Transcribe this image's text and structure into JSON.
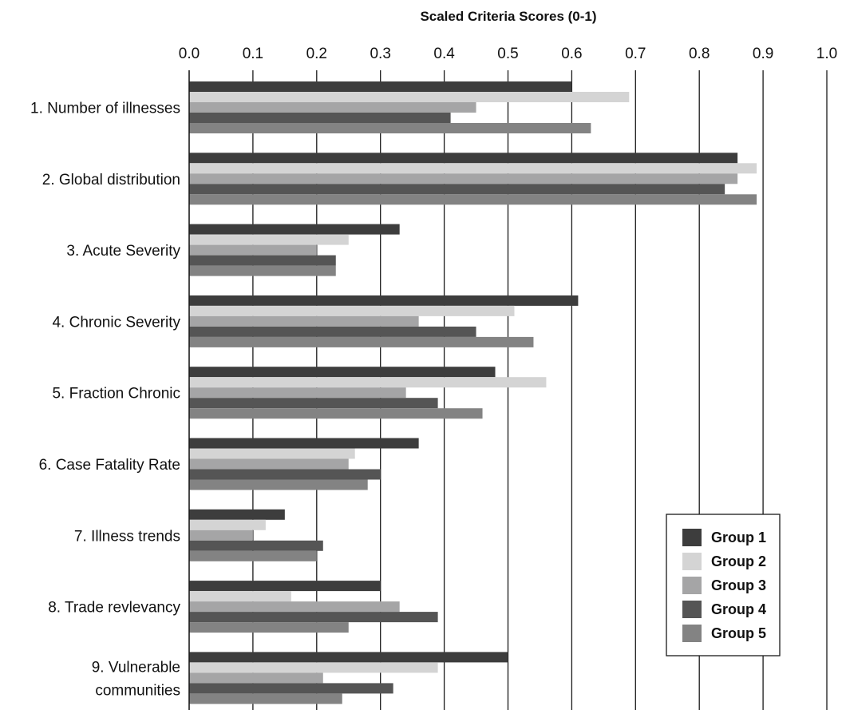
{
  "chart_data": {
    "type": "bar",
    "orientation": "horizontal",
    "title": "",
    "xlabel": "Scaled Criteria Scores (0-1)",
    "ylabel": "",
    "xlim": [
      0,
      1
    ],
    "x_ticks": [
      "0.0",
      "0.1",
      "0.2",
      "0.3",
      "0.4",
      "0.5",
      "0.6",
      "0.7",
      "0.8",
      "0.9",
      "1.0"
    ],
    "x_axis_position": "top",
    "grid": "vertical",
    "legend_position": "bottom-right",
    "categories": [
      [
        "1. Number of illnesses"
      ],
      [
        "2. Global distribution"
      ],
      [
        "3. Acute Severity"
      ],
      [
        "4. Chronic Severity"
      ],
      [
        "5. Fraction Chronic"
      ],
      [
        "6. Case Fatality Rate"
      ],
      [
        "7. Illness trends"
      ],
      [
        "8. Trade revlevancy"
      ],
      [
        "9. Vulnerable",
        "communities"
      ]
    ],
    "series": [
      {
        "name": "Group 1",
        "color": "#3d3d3d",
        "values": [
          0.6,
          0.86,
          0.33,
          0.61,
          0.48,
          0.36,
          0.15,
          0.3,
          0.5
        ]
      },
      {
        "name": "Group 2",
        "color": "#d4d4d4",
        "values": [
          0.69,
          0.89,
          0.25,
          0.51,
          0.56,
          0.26,
          0.12,
          0.16,
          0.39
        ]
      },
      {
        "name": "Group 3",
        "color": "#a5a5a6",
        "values": [
          0.45,
          0.86,
          0.2,
          0.36,
          0.34,
          0.25,
          0.1,
          0.33,
          0.21
        ]
      },
      {
        "name": "Group 4",
        "color": "#555555",
        "values": [
          0.41,
          0.84,
          0.23,
          0.45,
          0.39,
          0.3,
          0.21,
          0.39,
          0.32
        ]
      },
      {
        "name": "Group 5",
        "color": "#838383",
        "values": [
          0.63,
          0.89,
          0.23,
          0.54,
          0.46,
          0.28,
          0.2,
          0.25,
          0.24
        ]
      }
    ]
  }
}
